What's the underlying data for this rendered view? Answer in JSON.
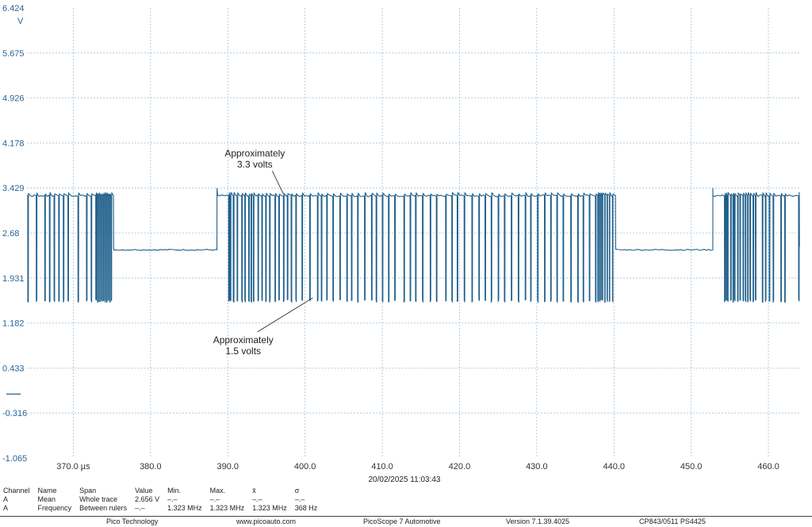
{
  "chart_data": {
    "type": "line",
    "title": "",
    "ylabel": "V",
    "xlabel": "",
    "ylim": [
      -1.065,
      6.424
    ],
    "xlim": [
      364.0,
      464.0
    ],
    "y_ticks": [
      "6.424",
      "5.675",
      "4.926",
      "4.178",
      "3.429",
      "2.68",
      "1.931",
      "1.182",
      "0.433",
      "-0.316",
      "-1.065"
    ],
    "y_unit": "V",
    "x_ticks": [
      {
        "value": 370.0,
        "label": "370.0 µs"
      },
      {
        "value": 380.0,
        "label": "380.0"
      },
      {
        "value": 390.0,
        "label": "390.0"
      },
      {
        "value": 400.0,
        "label": "400.0"
      },
      {
        "value": 410.0,
        "label": "410.0"
      },
      {
        "value": 420.0,
        "label": "420.0"
      },
      {
        "value": 430.0,
        "label": "430.0"
      },
      {
        "value": 440.0,
        "label": "440.0"
      },
      {
        "value": 450.0,
        "label": "450.0"
      },
      {
        "value": 460.0,
        "label": "460.0"
      }
    ],
    "grid": true,
    "zero_marker_value": 0.0,
    "series": [
      {
        "name": "Channel A",
        "color": "#1f5f8b",
        "high_level": 3.3,
        "low_level": 1.55,
        "idle_level": 2.4,
        "segments": [
          {
            "kind": "bits",
            "start": 364.0,
            "end": 375.2,
            "pulses": [
              [
                364.1,
                0.08
              ],
              [
                365.2,
                0.08
              ],
              [
                366.3,
                0.08
              ],
              [
                366.9,
                0.08
              ],
              [
                367.5,
                0.08
              ],
              [
                368.1,
                0.08
              ],
              [
                368.7,
                0.08
              ],
              [
                369.3,
                0.08
              ],
              [
                370.6,
                0.08
              ],
              [
                371.7,
                0.08
              ],
              [
                372.3,
                0.08
              ],
              [
                372.9,
                0.08
              ],
              [
                373.1,
                0.06
              ],
              [
                373.3,
                0.06
              ],
              [
                373.5,
                0.06
              ],
              [
                373.7,
                0.06
              ],
              [
                373.9,
                0.06
              ],
              [
                374.1,
                0.06
              ],
              [
                374.3,
                0.06
              ],
              [
                374.5,
                0.06
              ],
              [
                374.7,
                0.06
              ],
              [
                374.9,
                0.06
              ]
            ]
          },
          {
            "kind": "idle",
            "start": 375.2,
            "end": 388.6
          },
          {
            "kind": "rise",
            "at": 388.6
          },
          {
            "kind": "bits",
            "start": 388.7,
            "end": 440.2,
            "pulses": [
              [
                390.1,
                0.1
              ],
              [
                390.3,
                0.1
              ],
              [
                390.7,
                0.1
              ],
              [
                391.2,
                0.08
              ],
              [
                391.8,
                0.08
              ],
              [
                392.2,
                0.08
              ],
              [
                392.7,
                0.08
              ],
              [
                393.0,
                0.08
              ],
              [
                393.3,
                0.08
              ],
              [
                393.9,
                0.08
              ],
              [
                394.4,
                0.08
              ],
              [
                394.9,
                0.08
              ],
              [
                395.4,
                0.08
              ],
              [
                396.1,
                0.08
              ],
              [
                396.6,
                0.08
              ],
              [
                397.2,
                0.08
              ],
              [
                397.7,
                0.08
              ],
              [
                398.2,
                0.08
              ],
              [
                398.8,
                0.08
              ],
              [
                399.6,
                0.08
              ],
              [
                400.6,
                0.08
              ],
              [
                401.6,
                0.08
              ],
              [
                402.1,
                0.08
              ],
              [
                402.8,
                0.08
              ],
              [
                403.6,
                0.08
              ],
              [
                404.5,
                0.08
              ],
              [
                405.4,
                0.08
              ],
              [
                406.0,
                0.08
              ],
              [
                406.8,
                0.08
              ],
              [
                407.7,
                0.08
              ],
              [
                408.6,
                0.08
              ],
              [
                409.2,
                0.08
              ],
              [
                410.0,
                0.08
              ],
              [
                410.8,
                0.08
              ],
              [
                411.6,
                0.08
              ],
              [
                412.8,
                0.08
              ],
              [
                413.6,
                0.08
              ],
              [
                414.3,
                0.08
              ],
              [
                415.2,
                0.08
              ],
              [
                416.2,
                0.08
              ],
              [
                417.0,
                0.08
              ],
              [
                418.2,
                0.08
              ],
              [
                419.0,
                0.08
              ],
              [
                419.7,
                0.08
              ],
              [
                420.6,
                0.08
              ],
              [
                421.6,
                0.08
              ],
              [
                422.5,
                0.08
              ],
              [
                423.3,
                0.08
              ],
              [
                424.1,
                0.08
              ],
              [
                425.0,
                0.08
              ],
              [
                425.8,
                0.08
              ],
              [
                426.7,
                0.08
              ],
              [
                427.6,
                0.08
              ],
              [
                428.5,
                0.08
              ],
              [
                429.2,
                0.08
              ],
              [
                430.1,
                0.08
              ],
              [
                431.0,
                0.08
              ],
              [
                431.8,
                0.08
              ],
              [
                432.6,
                0.08
              ],
              [
                433.4,
                0.08
              ],
              [
                434.4,
                0.08
              ],
              [
                435.3,
                0.08
              ],
              [
                436.0,
                0.08
              ],
              [
                436.8,
                0.08
              ],
              [
                437.6,
                0.08
              ],
              [
                437.9,
                0.06
              ],
              [
                438.1,
                0.06
              ],
              [
                438.3,
                0.06
              ],
              [
                438.5,
                0.06
              ],
              [
                438.8,
                0.06
              ],
              [
                439.1,
                0.06
              ],
              [
                439.4,
                0.06
              ],
              [
                439.8,
                0.06
              ]
            ]
          },
          {
            "kind": "idle",
            "start": 440.2,
            "end": 452.8
          },
          {
            "kind": "rise",
            "at": 452.8
          },
          {
            "kind": "bits",
            "start": 452.8,
            "end": 464.0,
            "pulses": [
              [
                454.3,
                0.08
              ],
              [
                454.5,
                0.08
              ],
              [
                454.7,
                0.08
              ],
              [
                455.1,
                0.08
              ],
              [
                455.4,
                0.08
              ],
              [
                455.6,
                0.08
              ],
              [
                456.0,
                0.08
              ],
              [
                456.3,
                0.08
              ],
              [
                456.7,
                0.08
              ],
              [
                457.0,
                0.08
              ],
              [
                457.3,
                0.08
              ],
              [
                457.6,
                0.08
              ],
              [
                458.0,
                0.08
              ],
              [
                458.3,
                0.08
              ],
              [
                459.2,
                0.08
              ],
              [
                459.6,
                0.08
              ],
              [
                460.1,
                0.08
              ],
              [
                460.6,
                0.08
              ],
              [
                461.6,
                0.08
              ],
              [
                462.1,
                0.08
              ],
              [
                463.9,
                0.08
              ]
            ]
          }
        ]
      }
    ],
    "annotations": [
      {
        "lines": [
          "Approximately",
          "3.3 volts"
        ],
        "text_at": [
          393.5,
          3.95
        ],
        "points_to": [
          397.2,
          3.33
        ]
      },
      {
        "lines": [
          "Approximately",
          "1.5 volts"
        ],
        "text_at": [
          392.0,
          0.85
        ],
        "points_to": [
          401.0,
          1.6
        ]
      }
    ]
  },
  "timestamp": "20/02/2025 11:03:43",
  "measurements": {
    "headers": [
      "Channel",
      "Name",
      "Span",
      "Value",
      "Min.",
      "Max.",
      "x̄",
      "σ"
    ],
    "rows": [
      [
        "A",
        "Mean",
        "Whole trace",
        "2.656 V",
        "–.–",
        "–.–",
        "–.–",
        "–.–"
      ],
      [
        "A",
        "Frequency",
        "Between rulers",
        "–.–",
        "1.323 MHz",
        "1.323 MHz",
        "1.323 MHz",
        "368 Hz"
      ]
    ]
  },
  "footer": {
    "company": "Pico Technology",
    "website": "www.picoauto.com",
    "product": "PicoScope 7 Automotive",
    "version": "Version 7.1.39.4025",
    "device": "CP843/0511 PS4425"
  }
}
